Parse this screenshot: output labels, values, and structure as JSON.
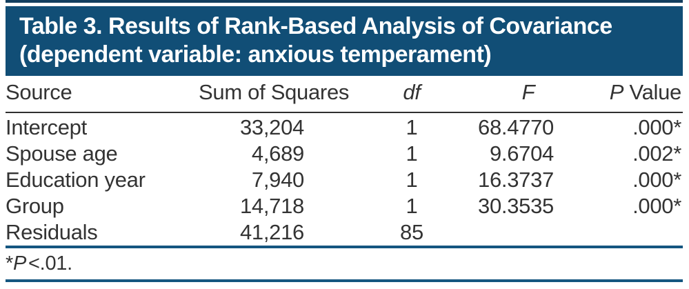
{
  "title": {
    "line1": "Table 3. Results of Rank-Based Analysis of Covariance",
    "line2": "(dependent variable: anxious temperament)"
  },
  "table": {
    "columns": [
      {
        "italic": "",
        "regular": "Source"
      },
      {
        "italic": "",
        "regular": "Sum of Squares"
      },
      {
        "italic": "df",
        "regular": ""
      },
      {
        "italic": "F",
        "regular": ""
      },
      {
        "italic": "P",
        "regular": " Value"
      }
    ],
    "rows": [
      {
        "source": "Intercept",
        "sum_of_squares": "33,204",
        "df": "1",
        "f": "68.4770",
        "p_value": ".000*"
      },
      {
        "source": "Spouse age",
        "sum_of_squares": "4,689",
        "df": "1",
        "f": "9.6704",
        "p_value": ".002*"
      },
      {
        "source": "Education year",
        "sum_of_squares": "7,940",
        "df": "1",
        "f": "16.3737",
        "p_value": ".000*"
      },
      {
        "source": "Group",
        "sum_of_squares": "14,718",
        "df": "1",
        "f": "30.3535",
        "p_value": ".000*"
      },
      {
        "source": "Residuals",
        "sum_of_squares": "41,216",
        "df": "85",
        "f": "",
        "p_value": ""
      }
    ]
  },
  "footnote": {
    "marker": "*",
    "p_symbol": "P",
    "rest": "<.01."
  },
  "colors": {
    "header_bg": "#114E76",
    "top_rule": "#123E5E",
    "blue_rule": "#145680",
    "header_divider": "#2F2F2F",
    "text": "#333333"
  }
}
